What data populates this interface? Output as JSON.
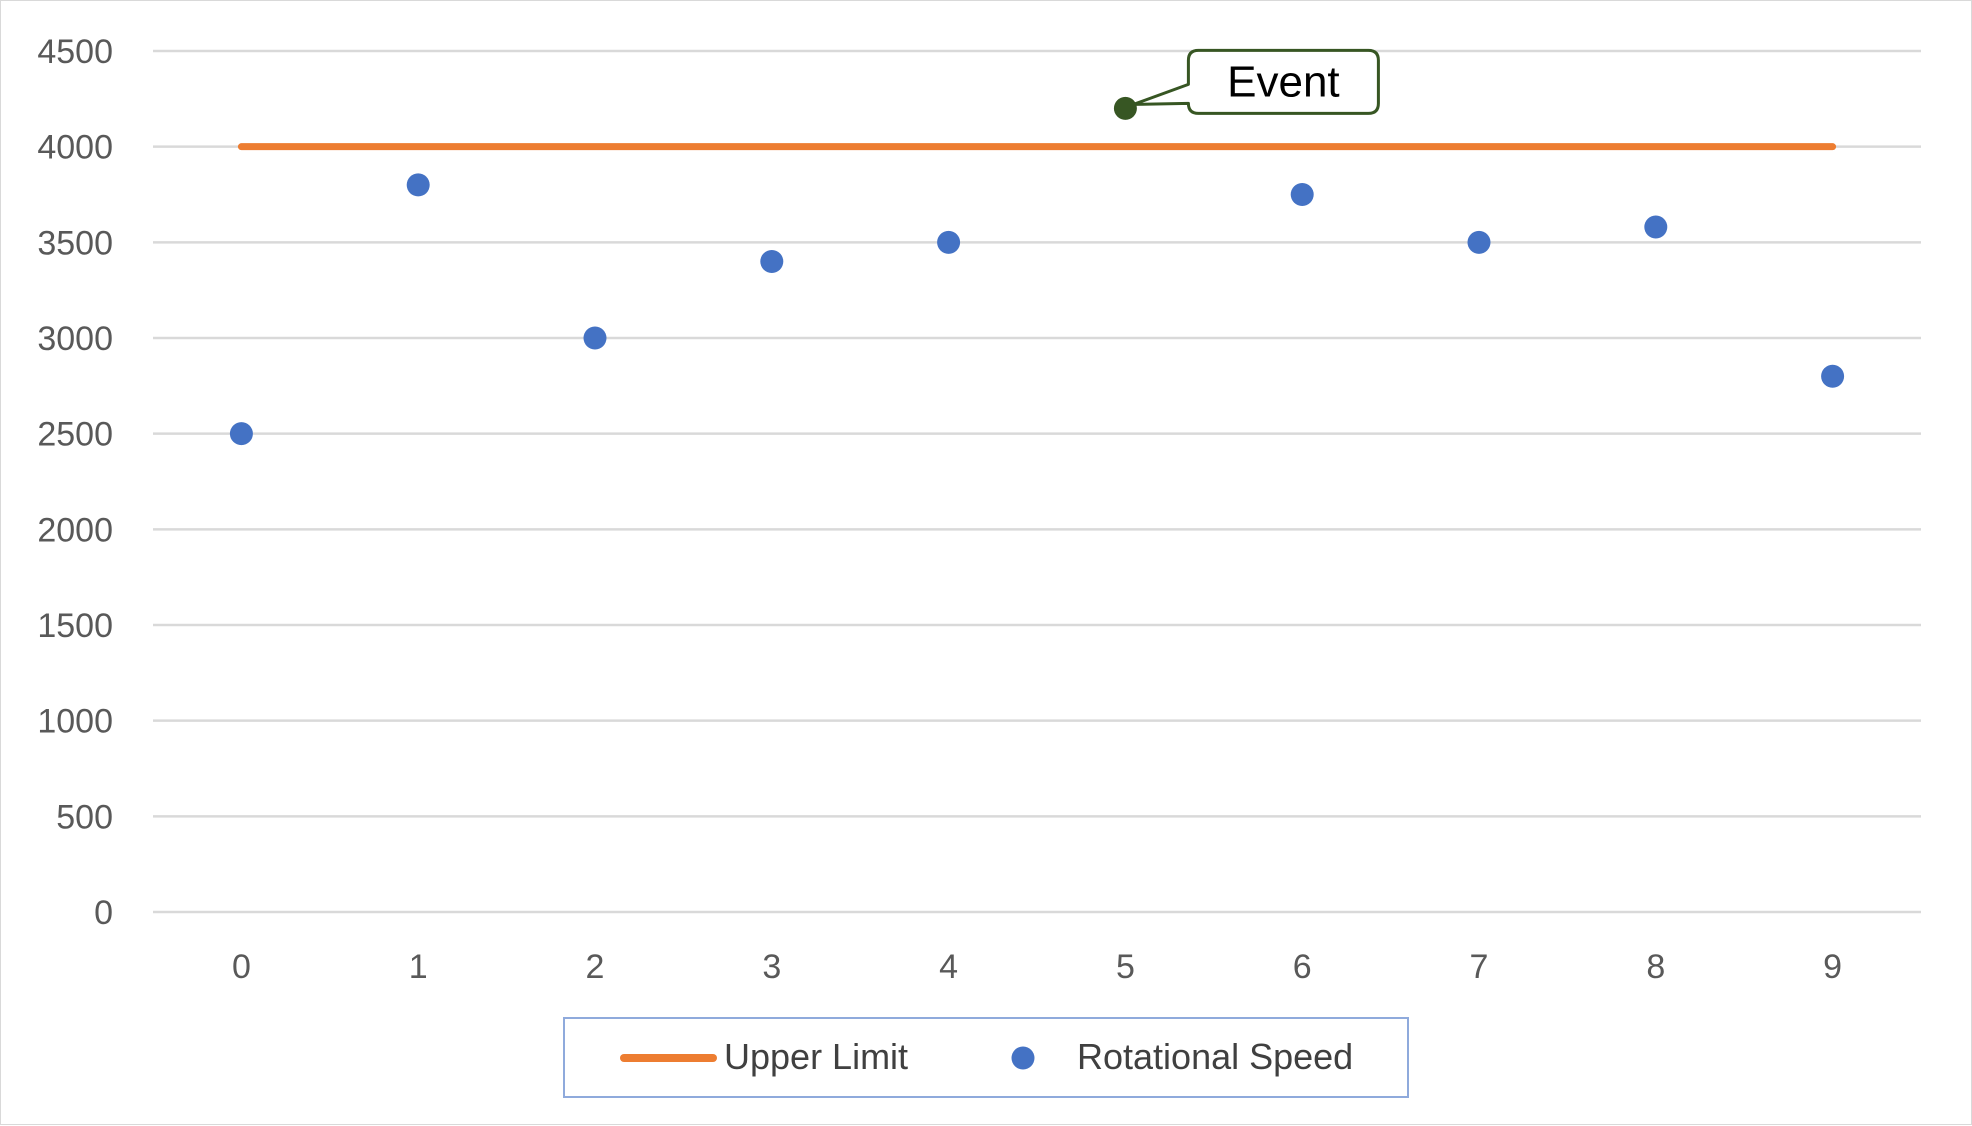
{
  "chart_data": {
    "type": "scatter",
    "title": "",
    "xlabel": "",
    "ylabel": "",
    "xlim": [
      -0.5,
      9.5
    ],
    "ylim": [
      0,
      4500
    ],
    "x_ticks": [
      0,
      1,
      2,
      3,
      4,
      5,
      6,
      7,
      8,
      9
    ],
    "y_ticks": [
      0,
      500,
      1000,
      1500,
      2000,
      2500,
      3000,
      3500,
      4000,
      4500
    ],
    "grid": "horizontal",
    "legend_position": "bottom",
    "series": [
      {
        "name": "Upper Limit",
        "type": "line",
        "color": "#ED7D31",
        "x": [
          0,
          9
        ],
        "y": [
          4000,
          4000
        ]
      },
      {
        "name": "Rotational Speed",
        "type": "scatter",
        "color": "#4472C4",
        "x": [
          0,
          1,
          2,
          3,
          4,
          6,
          7,
          8,
          9
        ],
        "y": [
          2500,
          3800,
          3000,
          3400,
          3500,
          3750,
          3500,
          3580,
          2800
        ]
      }
    ],
    "annotations": [
      {
        "text": "Event",
        "x": 5,
        "y": 4200,
        "marker_color": "#375623",
        "border_color": "#375623"
      }
    ]
  }
}
